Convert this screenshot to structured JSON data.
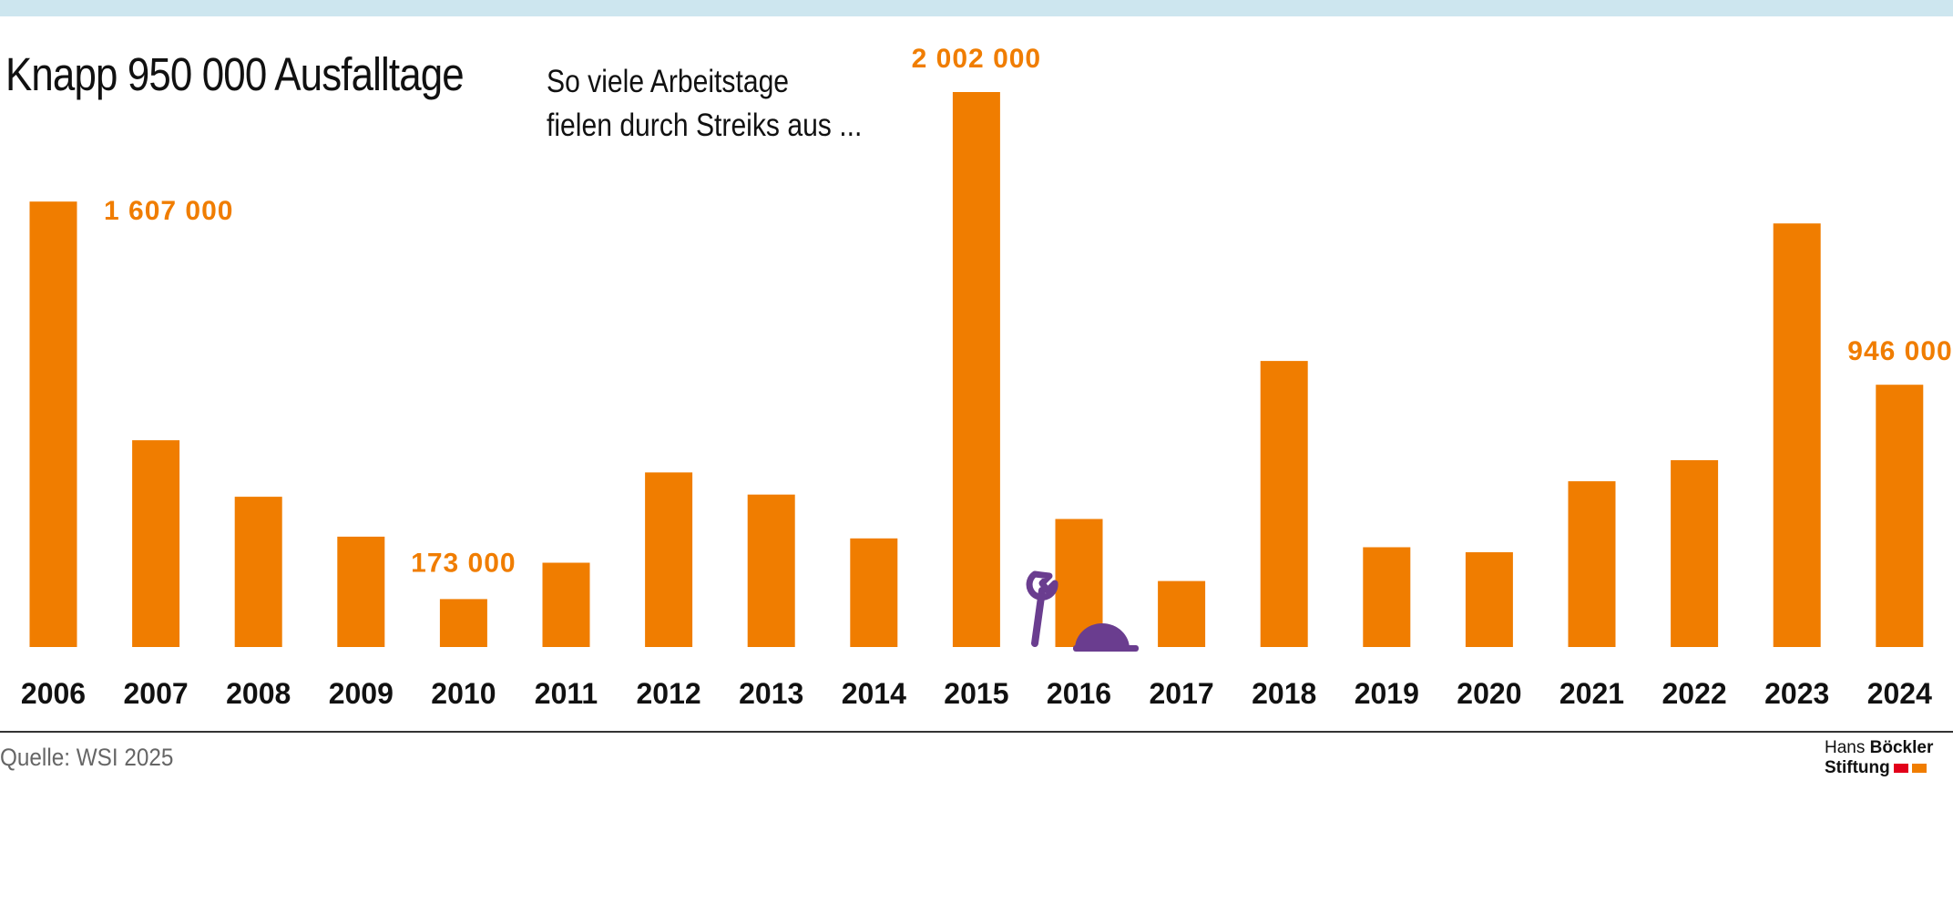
{
  "header": {
    "title": "Knapp 950 000 Ausfalltage",
    "subtitle_line1": "So viele Arbeitstage",
    "subtitle_line2": "fielen durch Streiks aus ..."
  },
  "footer": {
    "source": "Quelle: WSI 2025",
    "logo_line1_light": "Hans ",
    "logo_line1_bold": "Böckler",
    "logo_line2": "Stiftung"
  },
  "icons": [
    "wrench-icon",
    "hard-hat-icon"
  ],
  "colors": {
    "bar": "#f07d00",
    "label": "#f07d00",
    "icon": "#6a3d8f",
    "top_band": "#cde6ef",
    "logo_red": "#e2001a",
    "logo_orange": "#f07d00"
  },
  "chart_data": {
    "type": "bar",
    "categories": [
      "2006",
      "2007",
      "2008",
      "2009",
      "2010",
      "2011",
      "2012",
      "2013",
      "2014",
      "2015",
      "2016",
      "2017",
      "2018",
      "2019",
      "2020",
      "2021",
      "2022",
      "2023",
      "2024"
    ],
    "values": [
      1607000,
      746000,
      542000,
      398000,
      173000,
      304000,
      630000,
      550000,
      392000,
      2002000,
      462000,
      238000,
      1032000,
      360000,
      342000,
      598000,
      674000,
      1528000,
      946000
    ],
    "ylim": [
      0,
      2002000
    ],
    "annotations": [
      {
        "category": "2006",
        "text": "1 607 000"
      },
      {
        "category": "2010",
        "text": "173 000"
      },
      {
        "category": "2015",
        "text": "2 002 000"
      },
      {
        "category": "2024",
        "text": "946 000"
      }
    ],
    "grid": false,
    "xlabel": "",
    "ylabel": ""
  }
}
